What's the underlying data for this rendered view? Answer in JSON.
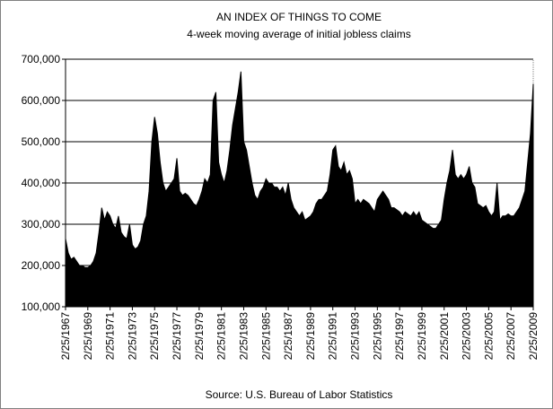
{
  "chart_data": {
    "type": "area",
    "title": "AN INDEX OF THINGS TO COME",
    "subtitle": "4-week moving average of initial jobless claims",
    "source": "Source: U.S. Bureau of Labor Statistics",
    "color": "#000000",
    "grid": true,
    "ylim": [
      100000,
      700000
    ],
    "yticks": [
      {
        "value": 100000,
        "label": "100,000"
      },
      {
        "value": 200000,
        "label": "200,000"
      },
      {
        "value": 300000,
        "label": "300,000"
      },
      {
        "value": 400000,
        "label": "400,000"
      },
      {
        "value": 500000,
        "label": "500,000"
      },
      {
        "value": 600000,
        "label": "600,000"
      },
      {
        "value": 700000,
        "label": "700,000"
      }
    ],
    "categories": [
      "2/25/1967",
      null,
      null,
      null,
      null,
      null,
      null,
      null,
      "2/25/1969",
      null,
      null,
      null,
      null,
      null,
      null,
      null,
      "2/25/1971",
      null,
      null,
      null,
      null,
      null,
      null,
      null,
      "2/25/1973",
      null,
      null,
      null,
      null,
      null,
      null,
      null,
      "2/25/1975",
      null,
      null,
      null,
      null,
      null,
      null,
      null,
      "2/25/1977",
      null,
      null,
      null,
      null,
      null,
      null,
      null,
      "2/25/1979",
      null,
      null,
      null,
      null,
      null,
      null,
      null,
      "2/25/1981",
      null,
      null,
      null,
      null,
      null,
      null,
      null,
      "2/25/1983",
      null,
      null,
      null,
      null,
      null,
      null,
      null,
      "2/25/1985",
      null,
      null,
      null,
      null,
      null,
      null,
      null,
      "2/25/1987",
      null,
      null,
      null,
      null,
      null,
      null,
      null,
      "2/25/1989",
      null,
      null,
      null,
      null,
      null,
      null,
      null,
      "2/25/1991",
      null,
      null,
      null,
      null,
      null,
      null,
      null,
      "2/25/1993",
      null,
      null,
      null,
      null,
      null,
      null,
      null,
      "2/25/1995",
      null,
      null,
      null,
      null,
      null,
      null,
      null,
      "2/25/1997",
      null,
      null,
      null,
      null,
      null,
      null,
      null,
      "2/25/1999",
      null,
      null,
      null,
      null,
      null,
      null,
      null,
      "2/25/2001",
      null,
      null,
      null,
      null,
      null,
      null,
      null,
      "2/25/2003",
      null,
      null,
      null,
      null,
      null,
      null,
      null,
      "2/25/2005",
      null,
      null,
      null,
      null,
      null,
      null,
      null,
      "2/25/2007",
      null,
      null,
      null,
      null,
      null,
      null,
      null,
      "2/25/2009"
    ],
    "values": [
      265000,
      230000,
      215000,
      220000,
      210000,
      200000,
      200000,
      195000,
      195000,
      200000,
      210000,
      230000,
      280000,
      340000,
      310000,
      330000,
      320000,
      300000,
      290000,
      320000,
      280000,
      270000,
      265000,
      300000,
      250000,
      240000,
      245000,
      260000,
      300000,
      320000,
      380000,
      500000,
      560000,
      520000,
      450000,
      400000,
      380000,
      390000,
      400000,
      410000,
      460000,
      380000,
      370000,
      375000,
      370000,
      360000,
      350000,
      345000,
      360000,
      380000,
      410000,
      400000,
      420000,
      600000,
      620000,
      450000,
      420000,
      400000,
      430000,
      480000,
      540000,
      580000,
      620000,
      670000,
      500000,
      480000,
      440000,
      400000,
      370000,
      360000,
      380000,
      390000,
      410000,
      400000,
      400000,
      390000,
      390000,
      380000,
      390000,
      370000,
      400000,
      360000,
      340000,
      330000,
      320000,
      330000,
      310000,
      315000,
      320000,
      330000,
      350000,
      360000,
      360000,
      370000,
      380000,
      420000,
      480000,
      490000,
      440000,
      430000,
      450000,
      420000,
      430000,
      410000,
      350000,
      360000,
      350000,
      360000,
      355000,
      350000,
      340000,
      330000,
      360000,
      370000,
      380000,
      370000,
      360000,
      340000,
      340000,
      335000,
      330000,
      320000,
      330000,
      325000,
      320000,
      330000,
      320000,
      330000,
      310000,
      305000,
      300000,
      295000,
      290000,
      290000,
      300000,
      310000,
      360000,
      400000,
      430000,
      480000,
      420000,
      410000,
      420000,
      410000,
      420000,
      440000,
      400000,
      390000,
      350000,
      345000,
      340000,
      345000,
      330000,
      320000,
      330000,
      400000,
      310000,
      320000,
      320000,
      325000,
      320000,
      320000,
      330000,
      340000,
      360000,
      380000,
      450000,
      520000,
      640000
    ]
  }
}
